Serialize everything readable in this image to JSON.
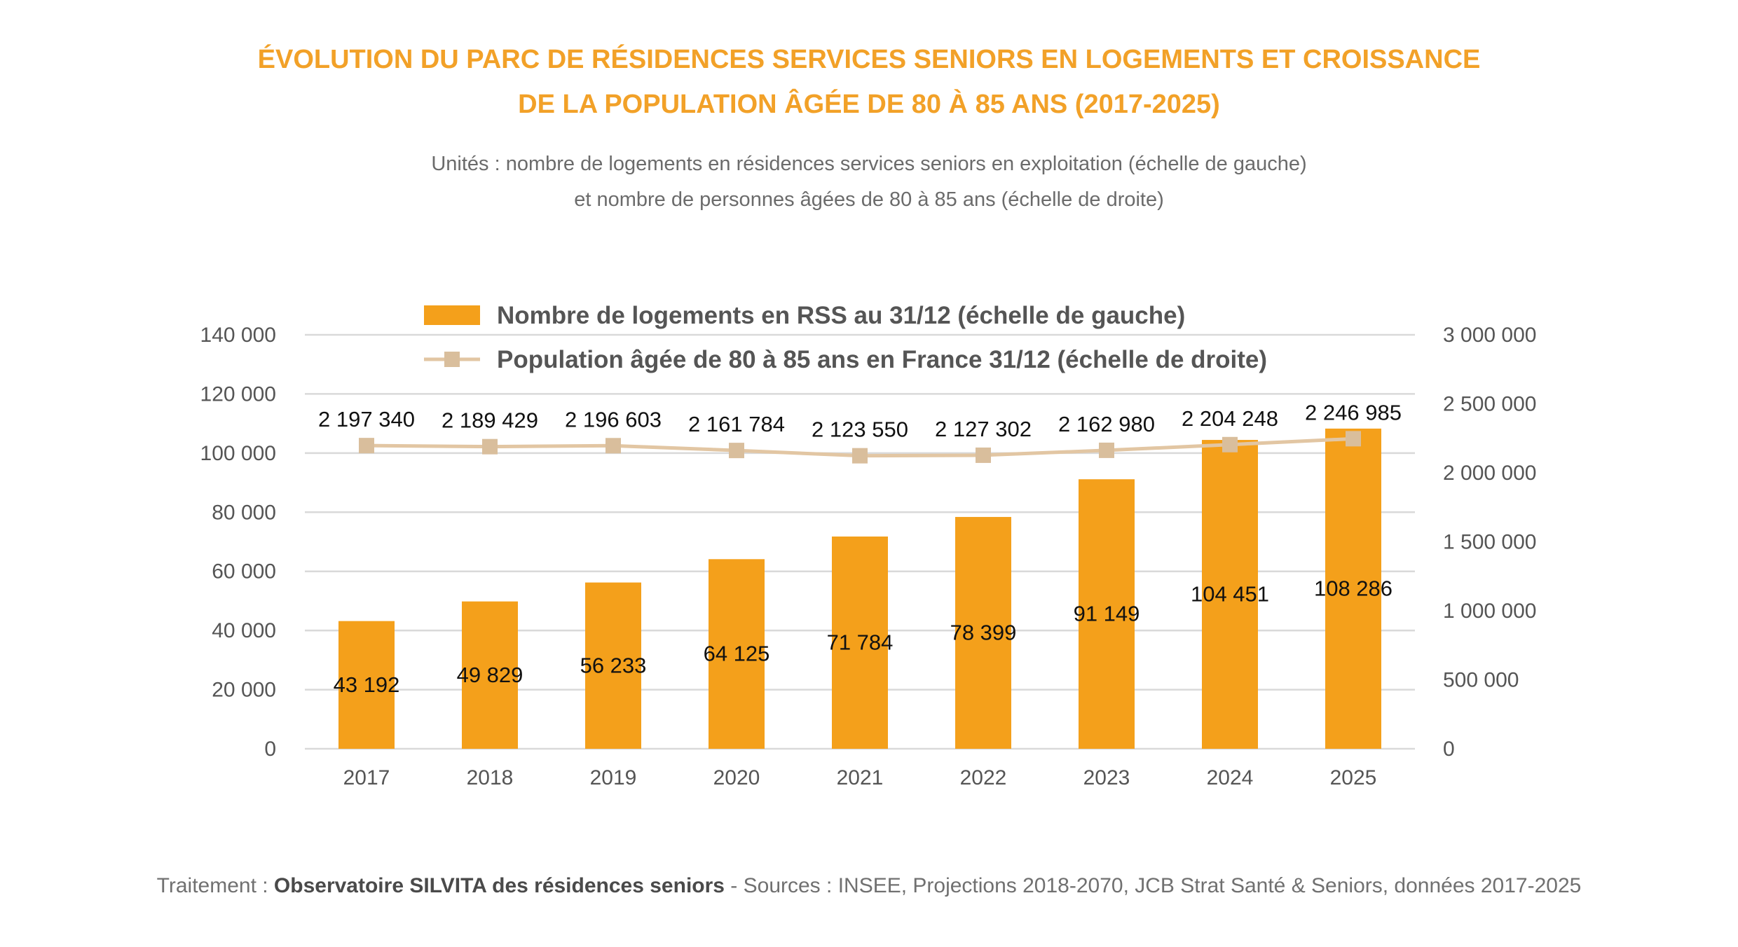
{
  "title_lines": [
    "ÉVOLUTION DU PARC DE RÉSIDENCES SERVICES SENIORS EN LOGEMENTS ET CROISSANCE",
    "DE LA POPULATION ÂGÉE DE 80 À 85 ANS (2017-2025)"
  ],
  "subtitle_lines": [
    "Unités : nombre de logements en résidences services seniors en exploitation (échelle de gauche)",
    "et nombre de personnes âgées de 80 à 85 ans (échelle de droite)"
  ],
  "footer": {
    "prefix": "Traitement : ",
    "bold": "Observatoire SILVITA des résidences seniors",
    "suffix": " - Sources : INSEE, Projections 2018-2070, JCB Strat Santé & Seniors, données 2017-2025"
  },
  "colors": {
    "title": "#F2A128",
    "bar": "#F4A01B",
    "line": "#E2C6A3",
    "marker": "#D9BE9C",
    "grid": "#D9D9D9"
  },
  "chart_data": {
    "type": "bar+line",
    "categories": [
      "2017",
      "2018",
      "2019",
      "2020",
      "2021",
      "2022",
      "2023",
      "2024",
      "2025"
    ],
    "series": [
      {
        "name": "Nombre de logements en RSS au 31/12 (échelle de gauche)",
        "type": "bar",
        "axis": "left",
        "values": [
          43192,
          49829,
          56233,
          64125,
          71784,
          78399,
          91149,
          104451,
          108286
        ],
        "labels": [
          "43 192",
          "49 829",
          "56 233",
          "64 125",
          "71 784",
          "78 399",
          "91 149",
          "104 451",
          "108 286"
        ]
      },
      {
        "name": "Population âgée de 80 à 85 ans en France 31/12 (échelle de droite)",
        "type": "line",
        "axis": "right",
        "values": [
          2197340,
          2189429,
          2196603,
          2161784,
          2123550,
          2127302,
          2162980,
          2204248,
          2246985
        ],
        "labels": [
          "2 197 340",
          "2 189 429",
          "2 196 603",
          "2 161 784",
          "2 123 550",
          "2 127 302",
          "2 162 980",
          "2 204 248",
          "2 246 985"
        ]
      }
    ],
    "y_left": {
      "range": [
        0,
        140000
      ],
      "ticks": [
        0,
        20000,
        40000,
        60000,
        80000,
        100000,
        120000,
        140000
      ],
      "tick_labels": [
        "0",
        "20 000",
        "40 000",
        "60 000",
        "80 000",
        "100 000",
        "120 000",
        "140 000"
      ]
    },
    "y_right": {
      "range": [
        0,
        3000000
      ],
      "ticks": [
        0,
        500000,
        1000000,
        1500000,
        2000000,
        2500000,
        3000000
      ],
      "tick_labels": [
        "0",
        "500 000",
        "1 000 000",
        "1 500 000",
        "2 000 000",
        "2 500 000",
        "3 000 000"
      ]
    },
    "grid": true,
    "legend_position": "top"
  }
}
